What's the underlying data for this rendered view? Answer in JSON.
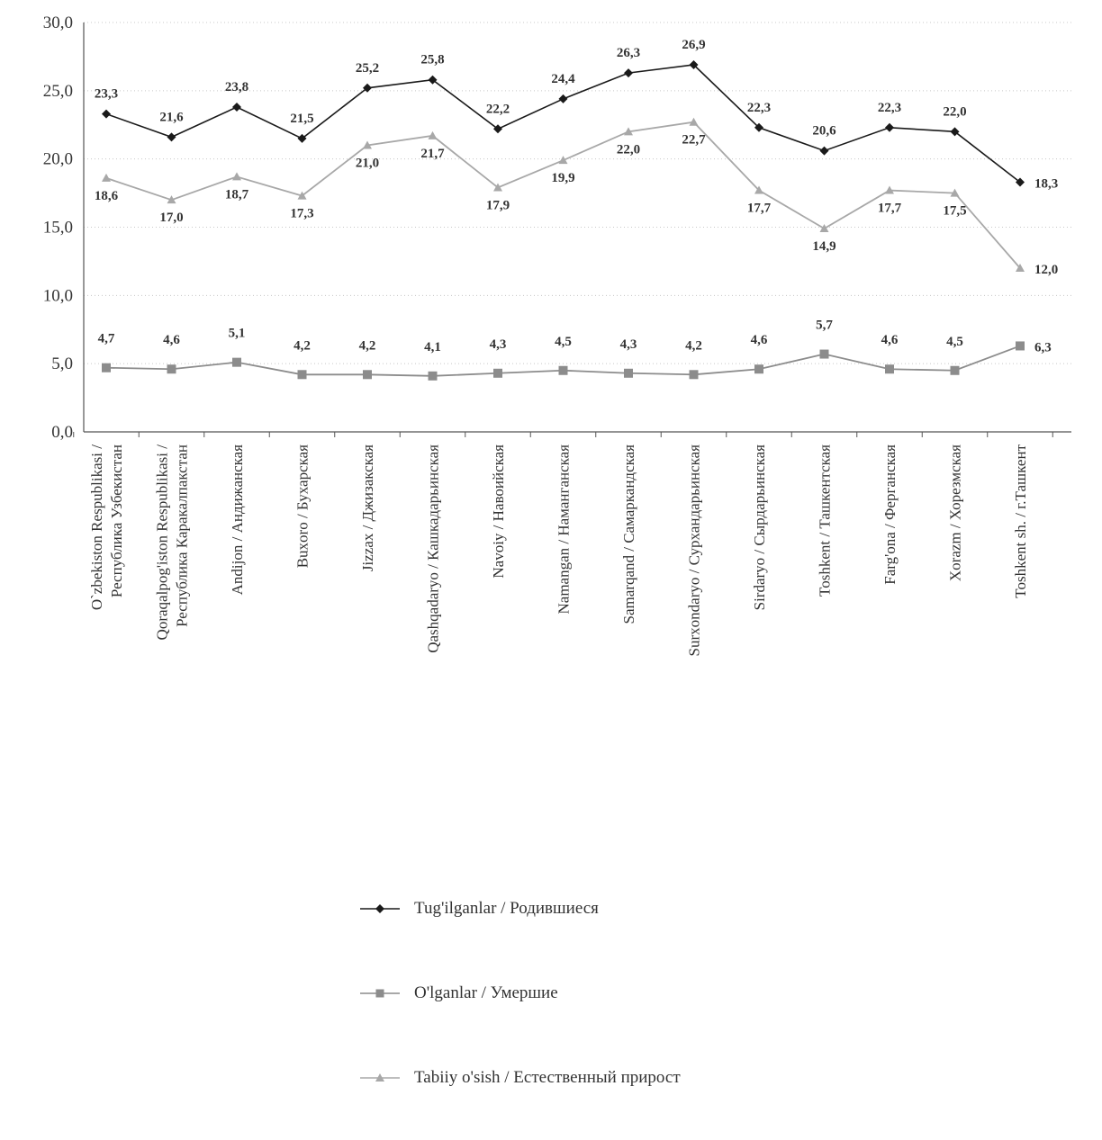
{
  "chart_data": {
    "type": "line",
    "categories": [
      "O`zbekiston Respublikasi / Республика Узбекистан",
      "Qoraqalpog'iston Respublikasi / Республика Каракалпакстан",
      "Andijon / Андижанская",
      "Buxoro / Бухарская",
      "Jizzax / Джизакская",
      "Qashqadaryo / Кашкадарьинская",
      "Navoiy / Навоийская",
      "Namangan / Наманганская",
      "Samarqand / Самаркандская",
      "Surxondaryo / Сурхандарьинская",
      "Sirdaryo / Сырдарьинская",
      "Toshkent / Ташкентская",
      "Farg'ona / Ферганская",
      "Xorazm / Хорезмская",
      "Toshkent sh. / г.Ташкент"
    ],
    "category_lines": [
      [
        "O`zbekiston Respublikasi /",
        "Республика Узбекистан"
      ],
      [
        "Qoraqalpog'iston Respublikasi /",
        "Республика Каракалпакстан"
      ],
      [
        "Andijon / Андижанская"
      ],
      [
        "Buxoro / Бухарская"
      ],
      [
        "Jizzax / Джизакская"
      ],
      [
        "Qashqadaryo / Кашкадарьинская"
      ],
      [
        "Navoiy / Навоийская"
      ],
      [
        "Namangan / Наманганская"
      ],
      [
        "Samarqand / Самаркандская"
      ],
      [
        "Surxondaryo / Сурхандарьинская"
      ],
      [
        "Sirdaryo / Сырдарьинская"
      ],
      [
        "Toshkent / Ташкентская"
      ],
      [
        "Farg'ona / Ферганская"
      ],
      [
        "Xorazm / Хорезмская"
      ],
      [
        "Toshkent sh. / г.Ташкент"
      ]
    ],
    "series": [
      {
        "name": "Tug'ilganlar / Родившиеся",
        "values": [
          23.3,
          21.6,
          23.8,
          21.5,
          25.2,
          25.8,
          22.2,
          24.4,
          26.3,
          26.9,
          22.3,
          20.6,
          22.3,
          22.0,
          18.3
        ],
        "labels": [
          "23,3",
          "21,6",
          "23,8",
          "21,5",
          "25,2",
          "25,8",
          "22,2",
          "24,4",
          "26,3",
          "26,9",
          "22,3",
          "20,6",
          "22,3",
          "22,0",
          "18,3"
        ],
        "color": "#1a1a1a",
        "marker": "diamond"
      },
      {
        "name": "O'lganlar / Умершие",
        "values": [
          4.7,
          4.6,
          5.1,
          4.2,
          4.2,
          4.1,
          4.3,
          4.5,
          4.3,
          4.2,
          4.6,
          5.7,
          4.6,
          4.5,
          6.3
        ],
        "labels": [
          "4,7",
          "4,6",
          "5,1",
          "4,2",
          "4,2",
          "4,1",
          "4,3",
          "4,5",
          "4,3",
          "4,2",
          "4,6",
          "5,7",
          "4,6",
          "4,5",
          "6,3"
        ],
        "color": "#8c8c8c",
        "marker": "square"
      },
      {
        "name": "Tabiiy o'sish / Естественный прирост",
        "values": [
          18.6,
          17.0,
          18.7,
          17.3,
          21.0,
          21.7,
          17.9,
          19.9,
          22.0,
          22.7,
          17.7,
          14.9,
          17.7,
          17.5,
          12.0
        ],
        "labels": [
          "18,6",
          "17,0",
          "18,7",
          "17,3",
          "21,0",
          "21,7",
          "17,9",
          "19,9",
          "22,0",
          "22,7",
          "17,7",
          "14,9",
          "17,7",
          "17,5",
          "12,0"
        ],
        "color": "#a8a8a8",
        "marker": "triangle"
      }
    ],
    "y_ticks": [
      "0,0",
      "5,0",
      "10,0",
      "15,0",
      "20,0",
      "25,0",
      "30,0"
    ],
    "ylim": [
      0,
      30
    ],
    "grid": true,
    "legend_position": "bottom-center",
    "title": "",
    "xlabel": "",
    "ylabel": ""
  },
  "legend": {
    "items": [
      {
        "label": "Tug'ilganlar / Родившиеся",
        "marker": "diamond",
        "color": "#1a1a1a"
      },
      {
        "label": "O'lganlar / Умершие",
        "marker": "square",
        "color": "#8c8c8c"
      },
      {
        "label": "Tabiiy o'sish / Естественный прирост",
        "marker": "triangle",
        "color": "#a8a8a8"
      }
    ]
  }
}
